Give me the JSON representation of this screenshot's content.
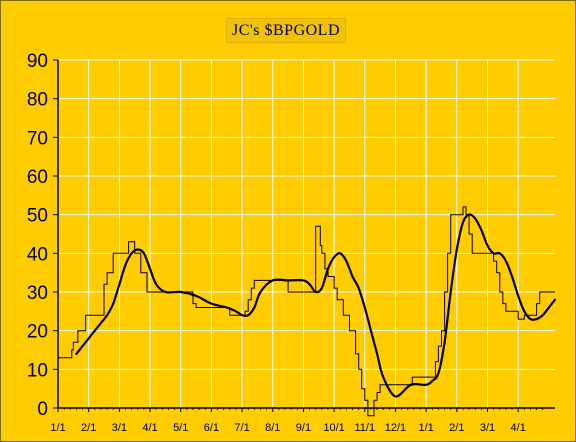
{
  "chart_data": {
    "type": "line",
    "title": "JC's $BPGOLD",
    "xlabel": "",
    "ylabel": "",
    "ylim": [
      0,
      90
    ],
    "yticks": [
      0,
      10,
      20,
      30,
      40,
      50,
      60,
      70,
      80,
      90
    ],
    "xlim": [
      0,
      16.2
    ],
    "xtick_labels": [
      "1/1",
      "2/1",
      "3/1",
      "4/1",
      "5/1",
      "6/1",
      "7/1",
      "8/1",
      "9/1",
      "10/1",
      "11/1",
      "12/1",
      "1/1",
      "2/1",
      "3/1",
      "4/1"
    ],
    "grid": true,
    "legend": "none",
    "colors": {
      "background": "#ffcc00",
      "grid": "#ffffff",
      "series": "#000000"
    },
    "series": [
      {
        "style": "thin-step",
        "x": [
          0.0,
          0.4,
          0.45,
          0.5,
          0.6,
          0.65,
          0.75,
          0.9,
          1.0,
          1.1,
          1.2,
          1.3,
          1.5,
          1.6,
          1.7,
          1.8,
          2.0,
          2.3,
          2.35,
          2.5,
          2.7,
          2.9,
          3.0,
          3.1,
          3.5,
          3.9,
          4.0,
          4.4,
          4.5,
          4.9,
          5.0,
          5.5,
          5.6,
          5.9,
          6.0,
          6.1,
          6.2,
          6.3,
          6.4,
          6.5,
          7.0,
          7.4,
          7.5,
          7.9,
          8.0,
          8.4,
          8.45,
          8.55,
          8.6,
          8.7,
          8.8,
          9.0,
          9.1,
          9.3,
          9.5,
          9.7,
          9.8,
          9.9,
          10.0,
          10.1,
          10.2,
          10.3,
          10.4,
          10.5,
          10.7,
          10.8,
          10.9,
          11.0,
          11.1,
          11.5,
          11.55,
          11.9,
          12.2,
          12.3,
          12.4,
          12.5,
          12.6,
          12.7,
          12.8,
          12.9,
          13.2,
          13.3,
          13.4,
          13.5,
          13.8,
          14.0,
          14.1,
          14.2,
          14.3,
          14.4,
          14.5,
          14.6,
          15.0,
          15.1,
          15.2,
          15.3,
          15.6,
          15.7,
          16.0,
          16.2
        ],
        "y": [
          13,
          13,
          15,
          17,
          17,
          20,
          20,
          24,
          24,
          24,
          24,
          24,
          32,
          35,
          35,
          40,
          40,
          43,
          43,
          40,
          35,
          30,
          30,
          30,
          30,
          30,
          30,
          27,
          26,
          26,
          26,
          26,
          24,
          24,
          24,
          25,
          28,
          31,
          33,
          33,
          33,
          33,
          30,
          30,
          30,
          47,
          47,
          42,
          40,
          36,
          34,
          31,
          28,
          24,
          20,
          14,
          10,
          5,
          2,
          -2,
          -2,
          2,
          4,
          6,
          6,
          6,
          6,
          6,
          6,
          6,
          8,
          8,
          8,
          12,
          16,
          20,
          30,
          40,
          50,
          50,
          52,
          50,
          45,
          40,
          40,
          40,
          40,
          38,
          35,
          30,
          27,
          25,
          23,
          23,
          24,
          24,
          27,
          30,
          30,
          30
        ]
      },
      {
        "style": "thick-smooth",
        "x": [
          0.6,
          0.8,
          1.0,
          1.2,
          1.4,
          1.6,
          1.8,
          2.0,
          2.2,
          2.4,
          2.6,
          2.8,
          3.0,
          3.2,
          3.5,
          4.0,
          4.5,
          5.0,
          5.5,
          5.8,
          6.0,
          6.2,
          6.4,
          6.6,
          7.0,
          7.5,
          8.0,
          8.2,
          8.4,
          8.6,
          8.8,
          9.0,
          9.2,
          9.4,
          9.6,
          9.8,
          10.0,
          10.2,
          10.4,
          10.6,
          11.0,
          11.5,
          12.0,
          12.2,
          12.4,
          12.6,
          12.8,
          13.0,
          13.2,
          13.4,
          13.6,
          13.8,
          14.0,
          14.2,
          14.4,
          14.6,
          14.8,
          15.0,
          15.2,
          15.4,
          15.6,
          15.8,
          16.0,
          16.2
        ],
        "y": [
          14,
          16,
          18,
          20,
          22,
          24,
          27,
          32,
          37,
          40,
          41,
          40,
          36,
          32,
          30,
          30,
          29,
          27,
          26,
          25,
          24,
          24,
          26,
          30,
          33,
          33,
          33,
          32,
          30,
          31,
          36,
          39,
          40,
          38,
          34,
          31,
          26,
          20,
          14,
          8,
          3,
          6,
          6,
          7,
          9,
          17,
          30,
          41,
          48,
          50,
          49,
          46,
          42,
          40,
          40,
          38,
          34,
          29,
          25,
          23,
          23,
          24,
          26,
          28
        ]
      }
    ]
  }
}
